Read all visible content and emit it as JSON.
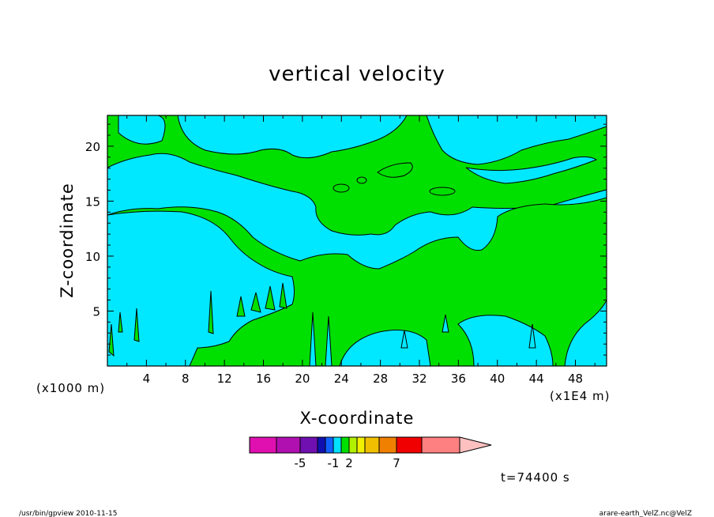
{
  "chart_data": {
    "type": "heatmap",
    "title": "vertical velocity",
    "xlabel": "X-coordinate",
    "ylabel": "Z-coordinate",
    "x_unit_label": "(x1000 m)",
    "x_unit_label_right": "(x1E4 m)",
    "x_ticks": [
      "4",
      "8",
      "12",
      "16",
      "20",
      "24",
      "28",
      "32",
      "36",
      "40",
      "44",
      "48"
    ],
    "y_ticks": [
      "5",
      "10",
      "15",
      "20"
    ],
    "xlim": [
      0,
      51.2
    ],
    "ylim": [
      0,
      22.8
    ],
    "colorbar": {
      "labels": [
        "-5",
        "-1",
        "2",
        "7"
      ],
      "colors": [
        "#e010b0",
        "#b010b0",
        "#7010b0",
        "#1010b0",
        "#1060ff",
        "#00e0ff",
        "#00e000",
        "#b0f000",
        "#f0f000",
        "#f0c000",
        "#f08000",
        "#f00000",
        "#ff8080",
        "#ffc0c0"
      ]
    },
    "field_colors": {
      "positive": "#00e000",
      "negative": "#00e8ff"
    },
    "grid": false
  },
  "time_label": "t=74400 s",
  "footer": {
    "left": "/usr/bin/gpview   2010-11-15",
    "right": "arare-earth_VelZ.nc@VelZ"
  }
}
